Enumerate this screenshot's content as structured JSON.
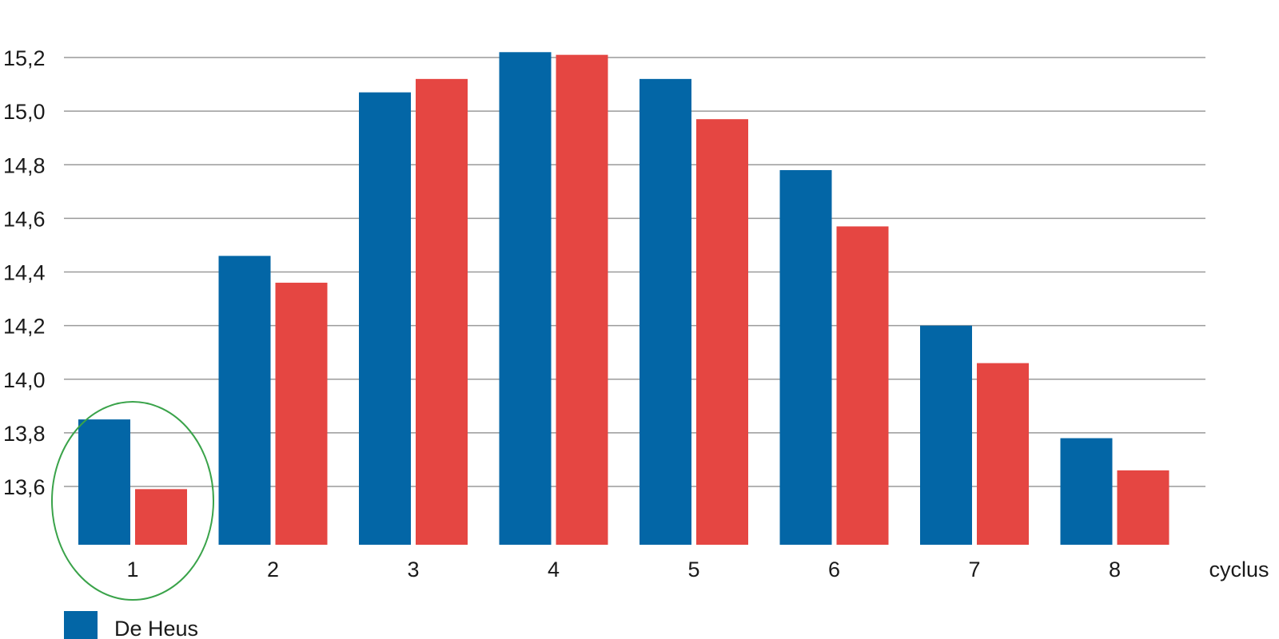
{
  "chart_data": {
    "type": "bar",
    "categories": [
      "1",
      "2",
      "3",
      "4",
      "5",
      "6",
      "7",
      "8"
    ],
    "series": [
      {
        "name": "De Heus",
        "color": "#0366a6",
        "values": [
          13.85,
          14.46,
          15.07,
          15.22,
          15.12,
          14.78,
          14.2,
          13.78
        ]
      },
      {
        "name": "",
        "color": "#e54642",
        "values": [
          13.59,
          14.36,
          15.12,
          15.21,
          14.97,
          14.57,
          14.06,
          13.66
        ]
      }
    ],
    "title": "",
    "xlabel": "cyclus",
    "ylabel": "",
    "ylim": [
      13.42,
      15.2
    ],
    "yticks": [
      13.6,
      13.8,
      14.0,
      14.2,
      14.4,
      14.6,
      14.8,
      15.0,
      15.2
    ],
    "ytick_labels": [
      "13,6",
      "13,8",
      "14,0",
      "14,2",
      "14,4",
      "14,6",
      "14,8",
      "15,0",
      "15,2"
    ],
    "grid": true,
    "legend": {
      "placement": "bottom-left",
      "entries": [
        "De Heus"
      ]
    },
    "annotation": {
      "shape": "ellipse",
      "color": "#3aa34a",
      "highlights_category": "1"
    }
  }
}
